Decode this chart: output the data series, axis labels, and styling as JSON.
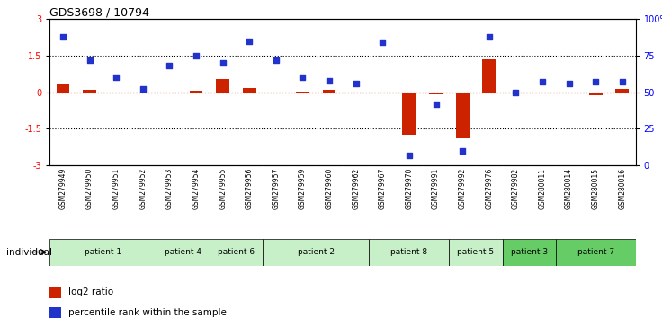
{
  "title": "GDS3698 / 10794",
  "samples": [
    "GSM279949",
    "GSM279950",
    "GSM279951",
    "GSM279952",
    "GSM279953",
    "GSM279954",
    "GSM279955",
    "GSM279956",
    "GSM279957",
    "GSM279959",
    "GSM279960",
    "GSM279962",
    "GSM279967",
    "GSM279970",
    "GSM279991",
    "GSM279992",
    "GSM279976",
    "GSM279982",
    "GSM280011",
    "GSM280014",
    "GSM280015",
    "GSM280016"
  ],
  "log2_ratio": [
    0.35,
    0.08,
    -0.05,
    0.0,
    -0.02,
    0.05,
    0.55,
    0.18,
    -0.02,
    0.02,
    0.08,
    -0.05,
    -0.05,
    -1.75,
    -0.08,
    -1.9,
    1.35,
    -0.05,
    -0.02,
    -0.02,
    -0.12,
    0.12
  ],
  "percentile_rank": [
    88,
    72,
    60,
    52,
    68,
    75,
    70,
    85,
    72,
    60,
    58,
    56,
    84,
    7,
    42,
    10,
    88,
    50,
    57,
    56,
    57,
    57
  ],
  "patients": [
    {
      "label": "patient 1",
      "start": 0,
      "end": 4,
      "color": "#c8f0c8"
    },
    {
      "label": "patient 4",
      "start": 4,
      "end": 6,
      "color": "#c8f0c8"
    },
    {
      "label": "patient 6",
      "start": 6,
      "end": 8,
      "color": "#c8f0c8"
    },
    {
      "label": "patient 2",
      "start": 8,
      "end": 12,
      "color": "#c8f0c8"
    },
    {
      "label": "patient 8",
      "start": 12,
      "end": 15,
      "color": "#c8f0c8"
    },
    {
      "label": "patient 5",
      "start": 15,
      "end": 17,
      "color": "#c8f0c8"
    },
    {
      "label": "patient 3",
      "start": 17,
      "end": 19,
      "color": "#66cc66"
    },
    {
      "label": "patient 7",
      "start": 19,
      "end": 22,
      "color": "#66cc66"
    }
  ],
  "ylim_left": [
    -3,
    3
  ],
  "ylim_right": [
    0,
    100
  ],
  "yticks_left": [
    -3,
    -1.5,
    0,
    1.5,
    3
  ],
  "ytick_labels_left": [
    "-3",
    "-1.5",
    "0",
    "1.5",
    "3"
  ],
  "yticks_right": [
    0,
    25,
    50,
    75,
    100
  ],
  "ytick_labels_right": [
    "0",
    "25",
    "50",
    "75",
    "100%"
  ],
  "hlines": [
    1.5,
    -1.5
  ],
  "bar_color": "#cc2200",
  "dot_color": "#2233cc",
  "bar_width": 0.5,
  "dot_size": 22,
  "legend_items": [
    {
      "label": "log2 ratio",
      "color": "#cc2200"
    },
    {
      "label": "percentile rank within the sample",
      "color": "#2233cc"
    }
  ],
  "individual_label": "individual",
  "background_color": "#ffffff",
  "plot_bg_color": "#ffffff",
  "sample_bg_color": "#c0c0c0",
  "patient_light_color": "#c8f0c8",
  "patient_dark_color": "#66cc66"
}
